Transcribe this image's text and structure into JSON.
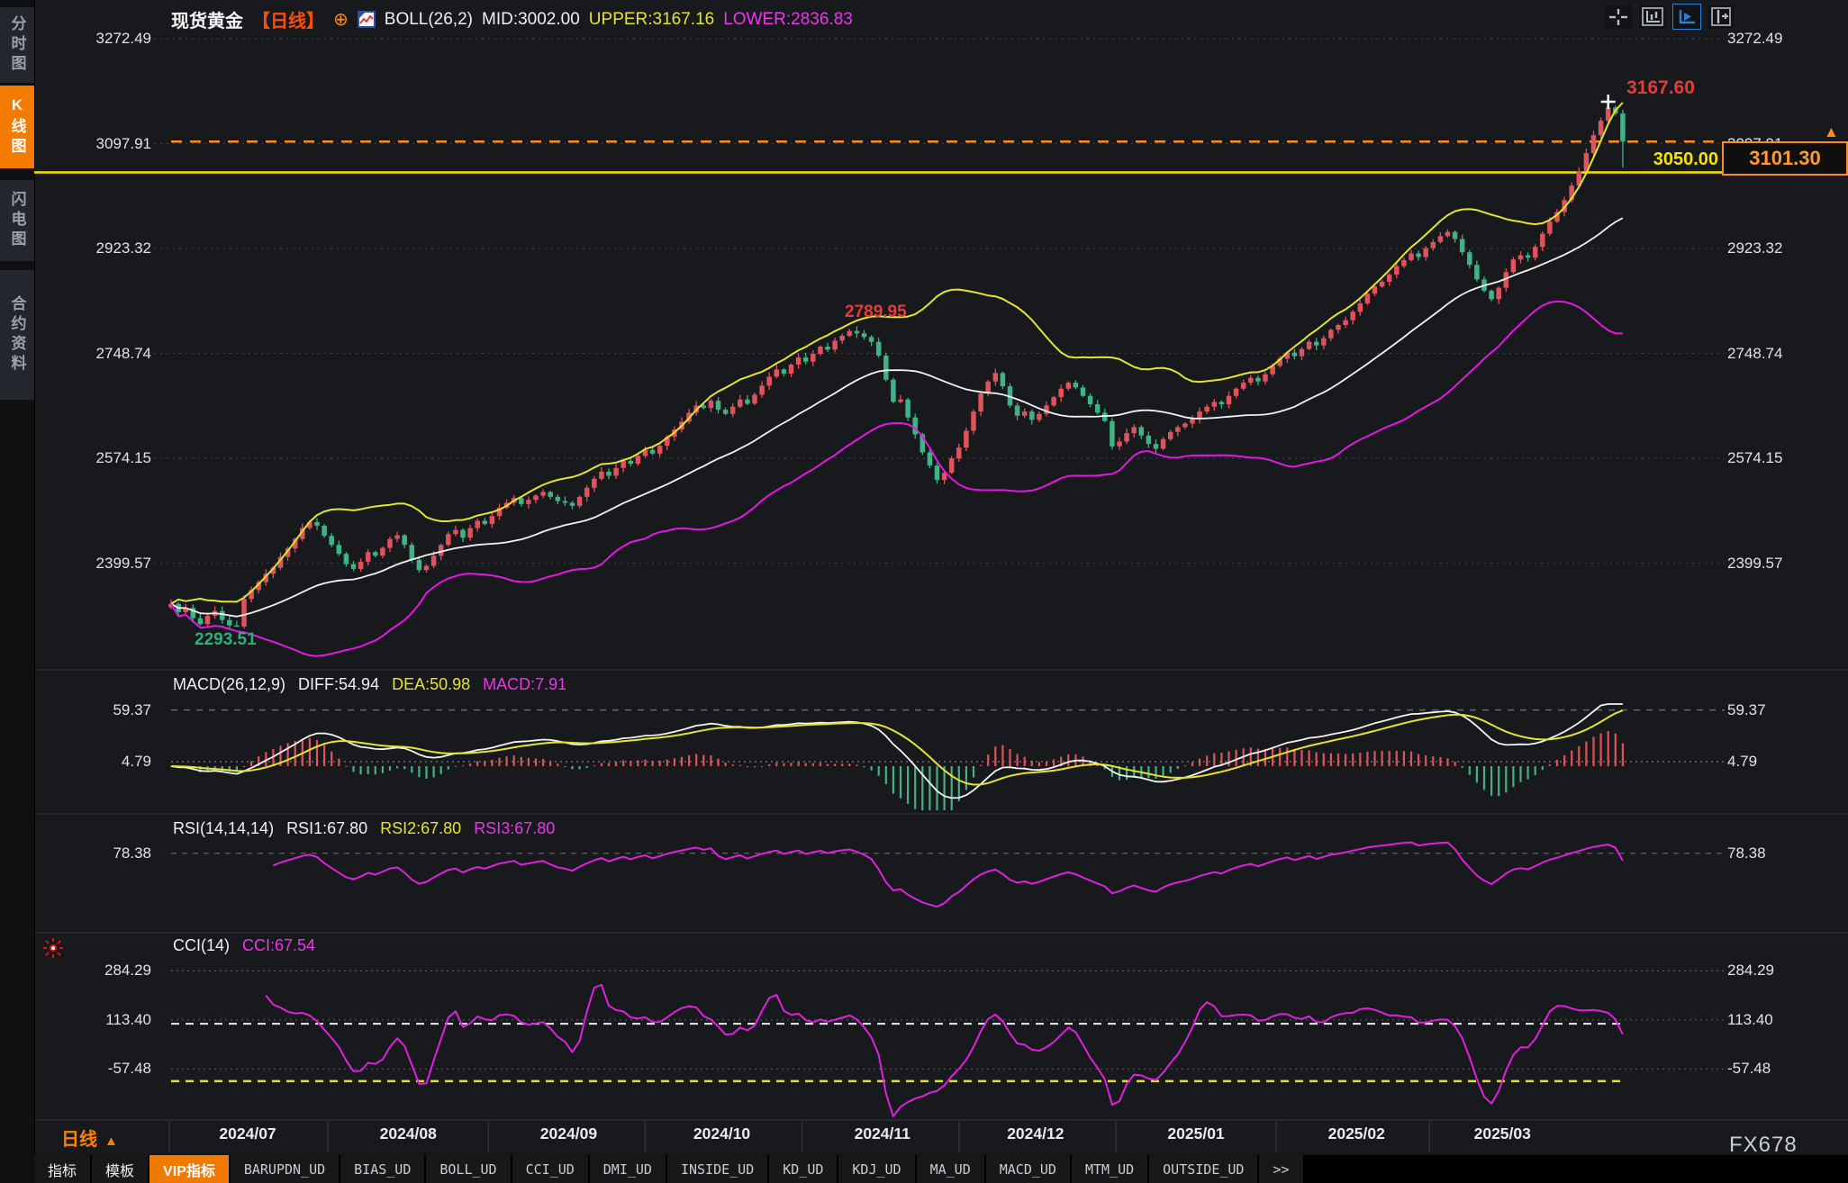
{
  "window": {
    "watermark": "FX678"
  },
  "sidebar": {
    "items": [
      {
        "label": "分时图",
        "active": false
      },
      {
        "label": "K线图",
        "active": true
      },
      {
        "label": "闪电图",
        "active": false
      },
      {
        "label": "合约资料",
        "active": false
      }
    ]
  },
  "header": {
    "symbol": "现货黄金",
    "period_tag": "【日线】",
    "marker_icon": "⊕",
    "boll_label": "BOLL(26,2)",
    "mid": "MID:3002.00",
    "upper": "UPPER:3167.16",
    "lower": "LOWER:2836.83"
  },
  "toolbar": {
    "icons": [
      {
        "name": "pan-crosshair",
        "active": false
      },
      {
        "name": "axis-scale",
        "active": false
      },
      {
        "name": "axis-play",
        "active": true
      },
      {
        "name": "dock-axis",
        "active": false
      }
    ]
  },
  "markers": {
    "high": "3167.60",
    "local_peak": "2789.95",
    "low": "2293.51",
    "hline": "3050.00",
    "price_box": "3101.30",
    "arrow": "▲"
  },
  "panels": {
    "macd": {
      "title": "MACD(26,12,9)",
      "diff": "DIFF:54.94",
      "dea": "DEA:50.98",
      "macd": "MACD:7.91",
      "axis": [
        59.37,
        4.79
      ]
    },
    "rsi": {
      "title": "RSI(14,14,14)",
      "rsi1": "RSI1:67.80",
      "rsi2": "RSI2:67.80",
      "rsi3": "RSI3:67.80",
      "axis": [
        78.38
      ]
    },
    "cci": {
      "title": "CCI(14)",
      "cci": "CCI:67.54",
      "axis": [
        284.29,
        113.4,
        -57.48
      ]
    }
  },
  "footer": {
    "period": "日线",
    "period_arrow": "▲",
    "tabs": [
      {
        "label": "指标",
        "cjk": true,
        "active": false
      },
      {
        "label": "模板",
        "cjk": true,
        "active": false
      },
      {
        "label": "VIP指标",
        "cjk": true,
        "active": true
      },
      {
        "label": "BARUPDN_UD",
        "cjk": false,
        "active": false
      },
      {
        "label": "BIAS_UD",
        "cjk": false,
        "active": false
      },
      {
        "label": "BOLL_UD",
        "cjk": false,
        "active": false
      },
      {
        "label": "CCI_UD",
        "cjk": false,
        "active": false
      },
      {
        "label": "DMI_UD",
        "cjk": false,
        "active": false
      },
      {
        "label": "INSIDE_UD",
        "cjk": false,
        "active": false
      },
      {
        "label": "KD_UD",
        "cjk": false,
        "active": false
      },
      {
        "label": "KDJ_UD",
        "cjk": false,
        "active": false
      },
      {
        "label": "MA_UD",
        "cjk": false,
        "active": false
      },
      {
        "label": "MACD_UD",
        "cjk": false,
        "active": false
      },
      {
        "label": "MTM_UD",
        "cjk": false,
        "active": false
      },
      {
        "label": "OUTSIDE_UD",
        "cjk": false,
        "active": false
      },
      {
        "label": ">>",
        "cjk": false,
        "active": false
      }
    ]
  },
  "colors": {
    "accent_orange": "#ff7e1a",
    "candle_up": "#e0525c",
    "candle_down": "#3fb286",
    "boll_upper": "#e6e332",
    "boll_mid": "#f2f2f2",
    "boll_lower": "#e319e3",
    "macd_diff": "#f2f2f2",
    "macd_dea": "#e6e332",
    "rsi_line": "#e020e0",
    "cci_line": "#e020e0",
    "label_red": "#e23c3c",
    "label_green": "#2fae7d",
    "hline_yellow": "#f5e400",
    "price_line_orange": "#ff8c1a",
    "active_blue": "#2f7fd4",
    "background": "#17191c"
  },
  "chart_data": {
    "type": "candlestick",
    "title": "现货黄金 日线 (Spot Gold, daily)",
    "price_axis": [
      3272.49,
      3097.91,
      2923.32,
      2748.74,
      2574.15,
      2399.57
    ],
    "x_labels": [
      "2024/07",
      "2024/08",
      "2024/09",
      "2024/10",
      "2024/11",
      "2024/12",
      "2025/01",
      "2025/02",
      "2025/03"
    ],
    "month_start_index": [
      10,
      32,
      54,
      75,
      97,
      118,
      140,
      162,
      182
    ],
    "closes": [
      2332,
      2318,
      2325,
      2308,
      2298,
      2312,
      2320,
      2305,
      2296,
      2294,
      2340,
      2355,
      2368,
      2382,
      2392,
      2410,
      2424,
      2440,
      2458,
      2468,
      2462,
      2445,
      2430,
      2415,
      2398,
      2390,
      2402,
      2418,
      2412,
      2425,
      2440,
      2446,
      2430,
      2405,
      2388,
      2395,
      2412,
      2430,
      2448,
      2455,
      2442,
      2458,
      2470,
      2465,
      2478,
      2492,
      2500,
      2508,
      2498,
      2505,
      2512,
      2518,
      2510,
      2503,
      2500,
      2495,
      2510,
      2525,
      2540,
      2552,
      2545,
      2558,
      2570,
      2565,
      2578,
      2588,
      2582,
      2595,
      2610,
      2622,
      2635,
      2650,
      2662,
      2658,
      2670,
      2655,
      2648,
      2660,
      2672,
      2665,
      2680,
      2695,
      2710,
      2722,
      2715,
      2730,
      2742,
      2735,
      2748,
      2760,
      2755,
      2770,
      2778,
      2786,
      2782,
      2776,
      2768,
      2745,
      2705,
      2668,
      2672,
      2642,
      2614,
      2584,
      2562,
      2538,
      2550,
      2574,
      2592,
      2620,
      2652,
      2682,
      2702,
      2716,
      2694,
      2662,
      2645,
      2652,
      2638,
      2648,
      2662,
      2676,
      2690,
      2700,
      2692,
      2678,
      2664,
      2650,
      2636,
      2594,
      2602,
      2616,
      2626,
      2612,
      2598,
      2590,
      2606,
      2618,
      2626,
      2632,
      2640,
      2652,
      2660,
      2668,
      2664,
      2678,
      2690,
      2700,
      2708,
      2702,
      2714,
      2728,
      2740,
      2750,
      2744,
      2756,
      2768,
      2762,
      2774,
      2788,
      2796,
      2804,
      2818,
      2832,
      2848,
      2860,
      2868,
      2880,
      2894,
      2904,
      2915,
      2909,
      2924,
      2934,
      2944,
      2951,
      2939,
      2917,
      2896,
      2872,
      2853,
      2839,
      2858,
      2884,
      2905,
      2912,
      2908,
      2926,
      2948,
      2968,
      2984,
      3004,
      3028,
      3052,
      3082,
      3112,
      3136,
      3158,
      3148,
      3101.3
    ],
    "forced_extremes": {
      "high_index": 197,
      "high": 3167.6,
      "low_index": 9,
      "low": 2293.51,
      "peak_index": 93,
      "peak_high": 2789.95,
      "last_low_index": 199,
      "last_low": 3058
    },
    "levels": {
      "current_price": 3101.3,
      "alert_line": 3050.0,
      "cci_upper": 100,
      "cci_lower": -100
    },
    "indicators": {
      "boll": {
        "period": 26,
        "mult": 2,
        "mid": 3002.0,
        "upper": 3167.16,
        "lower": 2836.83
      },
      "macd": {
        "fast": 12,
        "slow": 26,
        "signal": 9,
        "diff": 54.94,
        "dea": 50.98,
        "macd": 7.91
      },
      "rsi": {
        "periods": [
          14,
          14,
          14
        ],
        "values": [
          67.8,
          67.8,
          67.8
        ]
      },
      "cci": {
        "period": 14,
        "value": 67.54
      }
    }
  }
}
